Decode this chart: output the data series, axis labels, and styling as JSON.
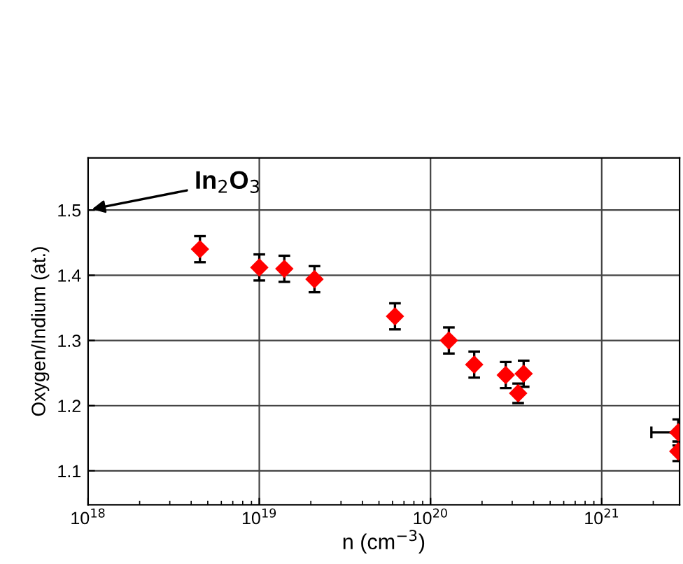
{
  "chart_data": {
    "type": "scatter",
    "xlabel": "n (cm$^{−3}$)",
    "ylabel": "Oxygen/Indium (at.)",
    "x": [
      4.5e+18,
      1e+19,
      1.4e+19,
      2.1e+19,
      6.2e+19,
      1.28e+20,
      1.8e+20,
      2.75e+20,
      3.25e+20,
      3.5e+20,
      2.8e+21,
      2.8e+21
    ],
    "series": [
      {
        "color": "#ff0000",
        "values": [
          1.44,
          1.412,
          1.41,
          1.394,
          1.337,
          1.3,
          1.263,
          1.247,
          1.219,
          1.249,
          1.159,
          1.13
        ],
        "errors": [
          0.02,
          0.02,
          0.02,
          0.02,
          0.02,
          0.02,
          0.02,
          0.02,
          0.015,
          0.02,
          0.02,
          0.015
        ],
        "xerrors": [
          null,
          null,
          null,
          null,
          null,
          null,
          null,
          null,
          null,
          null,
          [
            1.95e+21,
            2.8e+21
          ],
          null
        ]
      }
    ],
    "marker": "diamond",
    "log": "x",
    "xlim": [
      1e+18,
      2.85e+21
    ],
    "ylim": [
      1.048,
      1.58
    ],
    "xticks": [
      {
        "value": 1e+18,
        "label": "10$^{18}$"
      },
      {
        "value": 1e+19,
        "label": "10$^{19}$"
      },
      {
        "value": 1e+20,
        "label": "10$^{20}$"
      },
      {
        "value": 1e+21,
        "label": "10$^{21}$"
      }
    ],
    "yticks": [
      {
        "value": 1.1,
        "label": "1.1"
      },
      {
        "value": 1.2,
        "label": "1.2"
      },
      {
        "value": 1.3,
        "label": "1.3"
      },
      {
        "value": 1.4,
        "label": "1.4"
      },
      {
        "value": 1.5,
        "label": "1.5"
      }
    ],
    "grid": true,
    "annotations": [
      "In$_{2}$O$_{3}$"
    ]
  }
}
